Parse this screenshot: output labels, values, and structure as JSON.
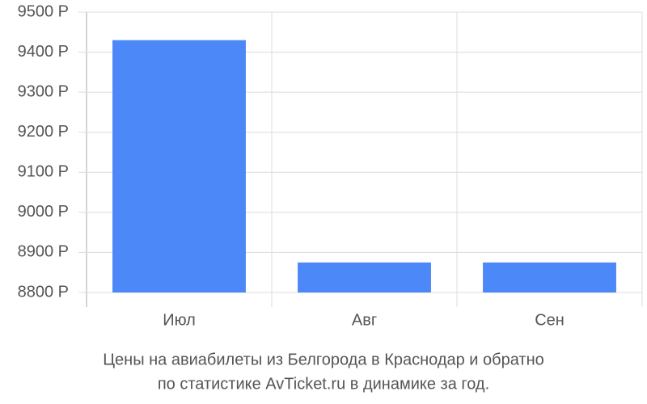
{
  "chart_data": {
    "type": "bar",
    "categories": [
      "Июл",
      "Авг",
      "Сен"
    ],
    "values": [
      9430,
      8875,
      8875
    ],
    "color": "#4d88f9",
    "ylim": [
      8800,
      9500
    ],
    "yticks": [
      {
        "value": 8800,
        "label": "8800 Р"
      },
      {
        "value": 8900,
        "label": "8900 Р"
      },
      {
        "value": 9000,
        "label": "9000 Р"
      },
      {
        "value": 9100,
        "label": "9100 Р"
      },
      {
        "value": 9200,
        "label": "9200 Р"
      },
      {
        "value": 9300,
        "label": "9300 Р"
      },
      {
        "value": 9400,
        "label": "9400 Р"
      },
      {
        "value": 9500,
        "label": "9500 Р"
      }
    ],
    "grid": true,
    "caption": [
      "Цены на авиабилеты из Белгорода в Краснодар и обратно",
      "по статистике AvTicket.ru в динамике за год."
    ]
  }
}
